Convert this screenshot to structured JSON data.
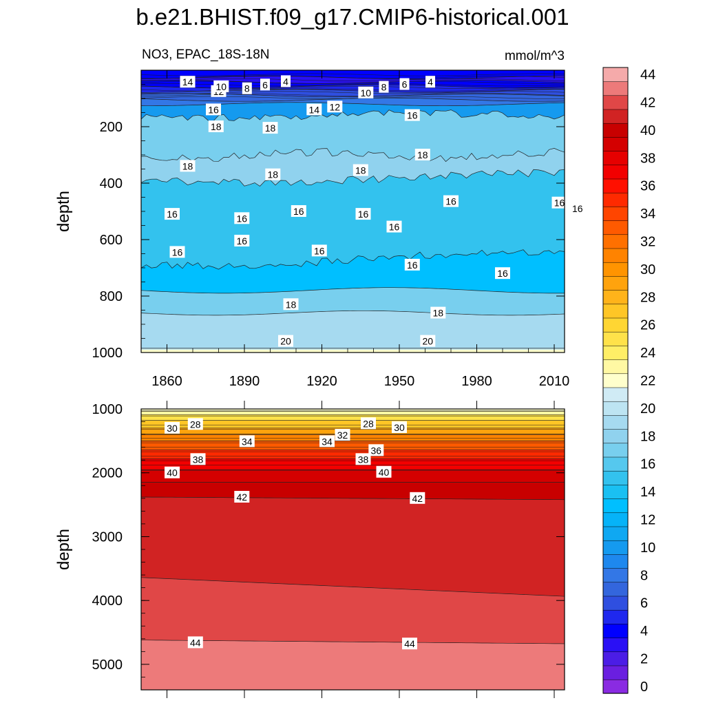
{
  "chart_data": {
    "type": "heatmap",
    "title": "b.e21.BHIST.f09_g17.CMIP6-historical.001",
    "colorbar": {
      "levels": [
        0,
        2,
        4,
        6,
        8,
        10,
        12,
        14,
        16,
        18,
        20,
        22,
        24,
        26,
        28,
        30,
        32,
        34,
        36,
        38,
        40,
        42,
        44
      ],
      "tick_labels": [
        "0",
        "2",
        "4",
        "6",
        "8",
        "10",
        "12",
        "14",
        "16",
        "18",
        "20",
        "22",
        "24",
        "26",
        "28",
        "30",
        "32",
        "34",
        "36",
        "38",
        "40",
        "42",
        "44"
      ],
      "colors": [
        "#8a2be2",
        "#6a1fe0",
        "#4b1de6",
        "#2a10f5",
        "#0000ff",
        "#1f28ee",
        "#2f4fe0",
        "#3366dd",
        "#3377e6",
        "#1e88ee",
        "#159aef",
        "#0fa8f2",
        "#06b3f8",
        "#00bfff",
        "#1ac0f2",
        "#33c2ee",
        "#55c8ee",
        "#78cfee",
        "#90d2ee",
        "#a6daf0",
        "#bde4f2",
        "#d0ebf5",
        "#ffffcc",
        "#fff8a3",
        "#ffee66",
        "#ffe24a",
        "#ffd633",
        "#ffc626",
        "#ffb31a",
        "#ffa30d",
        "#ff9400",
        "#ff8300",
        "#ff7000",
        "#ff5a00",
        "#ff4500",
        "#ff2a00",
        "#ff1000",
        "#f20000",
        "#e60000",
        "#d40000",
        "#c80000",
        "#d12323",
        "#e04747",
        "#ed7a7a",
        "#f5aaaa"
      ]
    },
    "panels": [
      {
        "subtitle_left": "NO3, EPAC_18S-18N",
        "subtitle_right": "mmol/m^3",
        "ylabel": "depth",
        "xlim": [
          1850,
          2014
        ],
        "ylim": [
          0,
          1000
        ],
        "y_inverted": true,
        "x_ticks": [
          "1860",
          "1890",
          "1920",
          "1950",
          "1980",
          "2010"
        ],
        "y_ticks": [
          "200",
          "400",
          "600",
          "800",
          "1000"
        ],
        "contour_labels": [
          {
            "x": 1868,
            "depth": 42,
            "text": "14"
          },
          {
            "x": 1880,
            "depth": 75,
            "text": "12"
          },
          {
            "x": 1881,
            "depth": 58,
            "text": "10"
          },
          {
            "x": 1891,
            "depth": 65,
            "text": "8"
          },
          {
            "x": 1898,
            "depth": 52,
            "text": "6"
          },
          {
            "x": 1906,
            "depth": 40,
            "text": "4"
          },
          {
            "x": 1878,
            "depth": 140,
            "text": "16"
          },
          {
            "x": 1879,
            "depth": 200,
            "text": "18"
          },
          {
            "x": 1900,
            "depth": 205,
            "text": "18"
          },
          {
            "x": 1917,
            "depth": 140,
            "text": "14"
          },
          {
            "x": 1925,
            "depth": 130,
            "text": "12"
          },
          {
            "x": 1937,
            "depth": 80,
            "text": "10"
          },
          {
            "x": 1944,
            "depth": 60,
            "text": "8"
          },
          {
            "x": 1952,
            "depth": 50,
            "text": "6"
          },
          {
            "x": 1962,
            "depth": 42,
            "text": "4"
          },
          {
            "x": 1955,
            "depth": 160,
            "text": "16"
          },
          {
            "x": 1959,
            "depth": 300,
            "text": "18"
          },
          {
            "x": 1868,
            "depth": 340,
            "text": "18"
          },
          {
            "x": 1901,
            "depth": 370,
            "text": "18"
          },
          {
            "x": 1935,
            "depth": 355,
            "text": "18"
          },
          {
            "x": 1862,
            "depth": 510,
            "text": "16"
          },
          {
            "x": 1889,
            "depth": 525,
            "text": "16"
          },
          {
            "x": 1911,
            "depth": 500,
            "text": "16"
          },
          {
            "x": 1936,
            "depth": 510,
            "text": "16"
          },
          {
            "x": 1948,
            "depth": 555,
            "text": "16"
          },
          {
            "x": 1970,
            "depth": 465,
            "text": "16"
          },
          {
            "x": 2012,
            "depth": 470,
            "text": "16"
          },
          {
            "x": 2019,
            "depth": 490,
            "text": "16"
          },
          {
            "x": 1864,
            "depth": 645,
            "text": "16"
          },
          {
            "x": 1889,
            "depth": 605,
            "text": "16"
          },
          {
            "x": 1919,
            "depth": 640,
            "text": "16"
          },
          {
            "x": 1955,
            "depth": 690,
            "text": "16"
          },
          {
            "x": 1990,
            "depth": 720,
            "text": "16"
          },
          {
            "x": 1908,
            "depth": 830,
            "text": "18"
          },
          {
            "x": 1965,
            "depth": 860,
            "text": "18"
          },
          {
            "x": 1906,
            "depth": 960,
            "text": "20"
          },
          {
            "x": 1961,
            "depth": 960,
            "text": "20"
          }
        ]
      },
      {
        "ylabel": "depth",
        "xlim": [
          1850,
          2014
        ],
        "ylim": [
          1000,
          5400
        ],
        "y_inverted": true,
        "y_ticks": [
          "1000",
          "2000",
          "3000",
          "4000",
          "5000"
        ],
        "contour_labels": [
          {
            "x": 1862,
            "depth": 1300,
            "text": "30"
          },
          {
            "x": 1871,
            "depth": 1240,
            "text": "28"
          },
          {
            "x": 1891,
            "depth": 1510,
            "text": "34"
          },
          {
            "x": 1872,
            "depth": 1790,
            "text": "38"
          },
          {
            "x": 1862,
            "depth": 2000,
            "text": "40"
          },
          {
            "x": 1889,
            "depth": 2380,
            "text": "42"
          },
          {
            "x": 1922,
            "depth": 1510,
            "text": "34"
          },
          {
            "x": 1928,
            "depth": 1410,
            "text": "32"
          },
          {
            "x": 1938,
            "depth": 1230,
            "text": "28"
          },
          {
            "x": 1950,
            "depth": 1290,
            "text": "30"
          },
          {
            "x": 1936,
            "depth": 1790,
            "text": "38"
          },
          {
            "x": 1941,
            "depth": 1650,
            "text": "36"
          },
          {
            "x": 1944,
            "depth": 1990,
            "text": "40"
          },
          {
            "x": 1957,
            "depth": 2400,
            "text": "42"
          },
          {
            "x": 1871,
            "depth": 4660,
            "text": "44"
          },
          {
            "x": 1954,
            "depth": 4680,
            "text": "44"
          }
        ]
      }
    ]
  }
}
